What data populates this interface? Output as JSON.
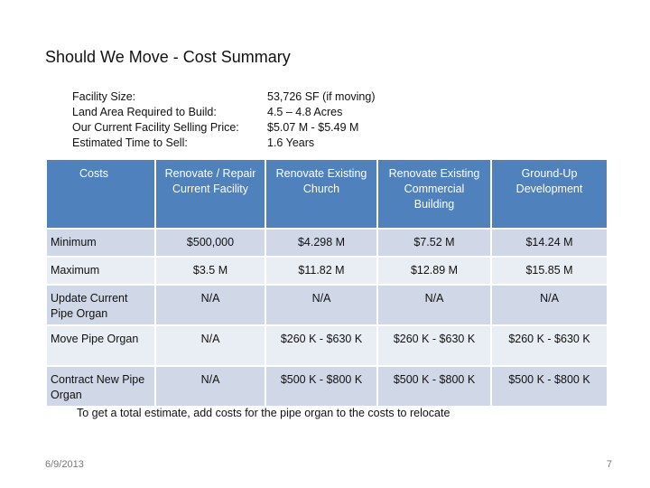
{
  "title": "Should We Move - Cost Summary",
  "facts": [
    {
      "label": "Facility Size:",
      "value": "53,726 SF (if moving)"
    },
    {
      "label": "Land Area Required to Build:",
      "value": "4.5 – 4.8 Acres"
    },
    {
      "label": "Our Current Facility Selling Price:",
      "value": "$5.07 M - $5.49 M"
    },
    {
      "label": "Estimated Time to Sell:",
      "value": "1.6 Years"
    }
  ],
  "table": {
    "headers": [
      "Costs",
      "Renovate / Repair Current Facility",
      "Renovate Existing Church",
      "Renovate Existing Commercial Building",
      "Ground-Up Development"
    ],
    "rows": [
      [
        "Minimum",
        "$500,000",
        "$4.298 M",
        "$7.52 M",
        "$14.24 M"
      ],
      [
        "Maximum",
        "$3.5 M",
        "$11.82 M",
        "$12.89 M",
        "$15.85 M"
      ],
      [
        "Update Current Pipe Organ",
        "N/A",
        "N/A",
        "N/A",
        "N/A"
      ],
      [
        "Move Pipe Organ",
        "N/A",
        "$260 K - $630  K",
        "$260 K - $630  K",
        "$260 K - $630  K"
      ],
      [
        "Contract New Pipe Organ",
        "N/A",
        "$500 K - $800 K",
        "$500 K - $800 K",
        "$500 K - $800 K"
      ]
    ]
  },
  "note": "To get a total estimate, add costs for the pipe organ to the costs to relocate",
  "footer": {
    "date": "6/9/2013",
    "page": "7"
  }
}
